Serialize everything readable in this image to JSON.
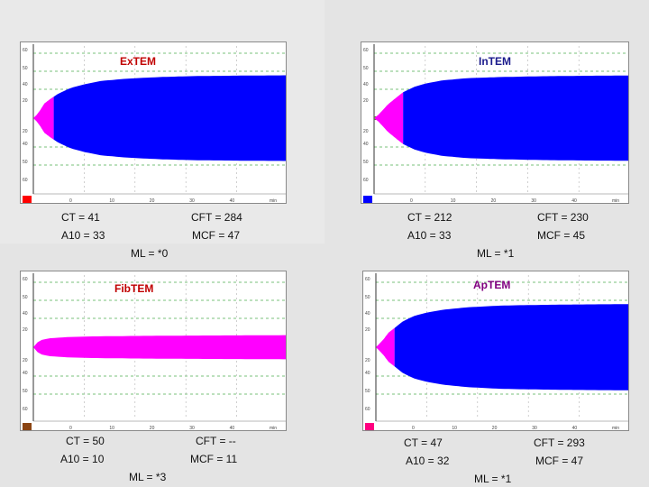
{
  "chart_data": [
    {
      "type": "area",
      "title": "ExTEM",
      "title_color": "#c00000",
      "fill_colors": {
        "early": "#ff00ff",
        "main": "#0000ff"
      },
      "indicator_color": "#ff0000",
      "y_tick_labels": [
        "60",
        "50",
        "40",
        "20",
        "20",
        "40",
        "50",
        "60"
      ],
      "x_tick_labels": [
        "0",
        "10",
        "20",
        "30",
        "40",
        "min"
      ],
      "profile": {
        "x": [
          0,
          4,
          8,
          13,
          20,
          30,
          45,
          60,
          80,
          110,
          150,
          190,
          240,
          300
        ],
        "y": [
          0,
          3,
          7,
          13,
          17,
          22,
          27,
          30,
          33,
          35,
          36.5,
          37.3,
          37.7,
          38
        ]
      },
      "ct_x": 4,
      "pink_end_x": 24,
      "stats": {
        "ct": "CT = 41",
        "cft": "CFT = 284",
        "a10": "A10 = 33",
        "mcf": "MCF = 47"
      },
      "ml": "ML = *0"
    },
    {
      "type": "area",
      "title": "InTEM",
      "title_color": "#1a1a8c",
      "fill_colors": {
        "early": "#ff00ff",
        "main": "#0000ff",
        "ct_line": "#4c8a2a"
      },
      "indicator_color": "#0000ff",
      "y_tick_labels": [
        "60",
        "50",
        "40",
        "20",
        "20",
        "40",
        "50",
        "60"
      ],
      "x_tick_labels": [
        "0",
        "10",
        "20",
        "30",
        "40",
        "min"
      ],
      "profile": {
        "x": [
          0,
          5,
          10,
          16,
          24,
          34,
          48,
          62,
          80,
          110,
          150,
          200,
          250,
          300
        ],
        "y": [
          0,
          3,
          7,
          12,
          17,
          23,
          28,
          31,
          33.5,
          35.5,
          36.5,
          37.2,
          37.6,
          37.8
        ]
      },
      "ct_x": 16,
      "pink_end_x": 34,
      "stats": {
        "ct": "CT = 212",
        "cft": "CFT = 230",
        "a10": "A10 = 33",
        "mcf": "MCF = 45"
      },
      "ml": "ML = *1"
    },
    {
      "type": "area",
      "title": "FibTEM",
      "title_color": "#c00000",
      "fill_colors": {
        "early": "#ff00ff",
        "main": "#ff00ff"
      },
      "indicator_color": "#8b4513",
      "y_tick_labels": [
        "60",
        "50",
        "40",
        "20",
        "20",
        "40",
        "50",
        "60"
      ],
      "x_tick_labels": [
        "0",
        "10",
        "20",
        "30",
        "40",
        "min"
      ],
      "profile": {
        "x": [
          0,
          4,
          10,
          20,
          40,
          70,
          120,
          180,
          240,
          300
        ],
        "y": [
          0,
          4,
          6.5,
          8,
          9,
          9.6,
          10,
          10.3,
          10.5,
          10.7
        ]
      },
      "ct_x": 4,
      "pink_end_x": 300,
      "stats": {
        "ct": "CT = 50",
        "cft": "CFT = --",
        "a10": "A10 = 10",
        "mcf": "MCF = 11"
      },
      "ml": "ML = *3"
    },
    {
      "type": "area",
      "title": "ApTEM",
      "title_color": "#800080",
      "fill_colors": {
        "early": "#ff00ff",
        "main": "#0000ff"
      },
      "indicator_color": "#ff0080",
      "y_tick_labels": [
        "60",
        "50",
        "40",
        "20",
        "20",
        "40",
        "50",
        "60"
      ],
      "x_tick_labels": [
        "0",
        "10",
        "20",
        "30",
        "40",
        "min"
      ],
      "profile": {
        "x": [
          0,
          4,
          9,
          15,
          22,
          32,
          46,
          62,
          82,
          110,
          150,
          200,
          250,
          300
        ],
        "y": [
          0,
          3,
          7,
          13,
          17,
          23,
          28,
          31,
          33.5,
          35.5,
          37,
          37.6,
          38,
          38.2
        ]
      },
      "ct_x": 4,
      "pink_end_x": 22,
      "stats": {
        "ct": "CT = 47",
        "cft": "CFT = 293",
        "a10": "A10 = 32",
        "mcf": "MCF = 47"
      },
      "ml": "ML = *1"
    }
  ]
}
